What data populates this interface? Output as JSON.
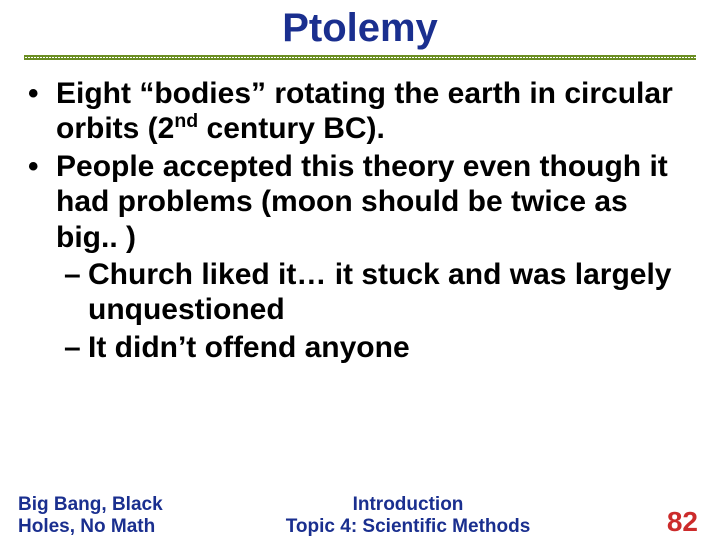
{
  "title": {
    "text": "Ptolemy",
    "color": "#1a2f8f",
    "fontsize": 40
  },
  "underline_color": "#6b8e23",
  "body_color": "#000000",
  "body_fontsize": 30,
  "bullets": [
    {
      "pre": "Eight “bodies” rotating the earth in circular orbits (2",
      "sup": "nd",
      "post": " century BC)."
    },
    {
      "pre": "People accepted this theory even though it had problems (moon should be twice as big.. )",
      "sup": "",
      "post": ""
    }
  ],
  "subbullets": [
    "Church liked it… it stuck and was largely unquestioned",
    "It didn’t offend anyone"
  ],
  "footer": {
    "left_line1": "Big Bang, Black",
    "left_line2": "Holes, No Math",
    "left_color": "#1a2f8f",
    "left_fontsize": 19,
    "center_line1": "Introduction",
    "center_line2": "Topic 4: Scientific Methods",
    "center_color": "#1a2f8f",
    "center_fontsize": 19,
    "page": "82",
    "page_color": "#cc2b2b",
    "page_fontsize": 28
  }
}
